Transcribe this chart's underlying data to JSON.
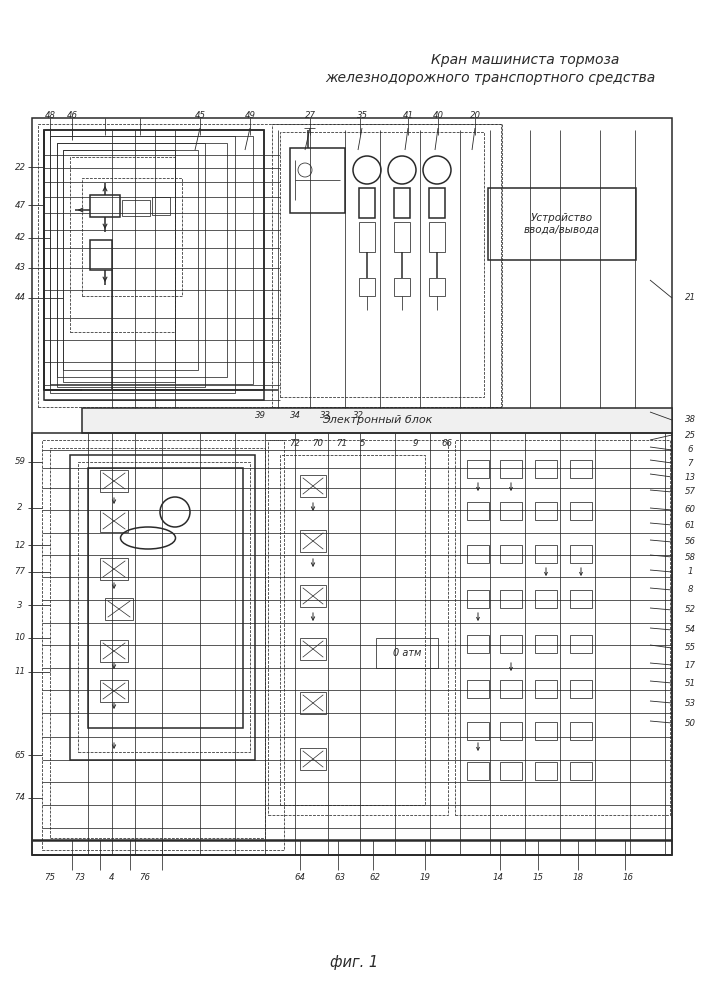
{
  "title1": "Кран машиниста тормоза",
  "title2": "железнодорожного транспортного средства",
  "fig_label": "фиг. 1",
  "bg": "#ffffff",
  "lc": "#2a2a2a",
  "lw1": 0.55,
  "lw2": 1.1,
  "lw3": 1.8,
  "fs_label": 6.2,
  "fs_title": 10.0,
  "fs_fig": 10.5
}
